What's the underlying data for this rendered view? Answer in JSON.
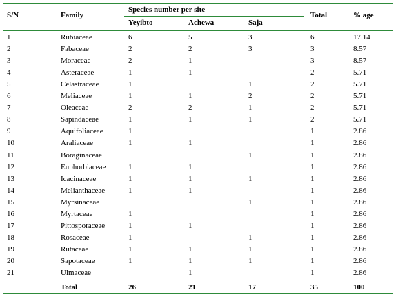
{
  "table": {
    "columns": [
      "S/N",
      "Family",
      "Species number per site",
      "Total",
      "% age"
    ],
    "site_columns": [
      "Yeyibto",
      "Achewa",
      "Saja"
    ],
    "rows": [
      [
        "1",
        "Rubiaceae",
        "6",
        "5",
        "3",
        "6",
        "17.14"
      ],
      [
        "2",
        "Fabaceae",
        "2",
        "2",
        "3",
        "3",
        "8.57"
      ],
      [
        "3",
        "Moraceae",
        "2",
        "1",
        null,
        "3",
        "8.57"
      ],
      [
        "4",
        "Asteraceae",
        "1",
        "1",
        null,
        "2",
        "5.71"
      ],
      [
        "5",
        "Celastraceae",
        "1",
        null,
        "1",
        "2",
        "5.71"
      ],
      [
        "6",
        "Meliaceae",
        "1",
        "1",
        "2",
        "2",
        "5.71"
      ],
      [
        "7",
        "Oleaceae",
        "2",
        "2",
        "1",
        "2",
        "5.71"
      ],
      [
        "8",
        "Sapindaceae",
        "1",
        "1",
        "1",
        "2",
        "5.71"
      ],
      [
        "9",
        "Aquifoliaceae",
        "1",
        null,
        null,
        "1",
        "2.86"
      ],
      [
        "10",
        "Araliaceae",
        "1",
        "1",
        null,
        "1",
        "2.86"
      ],
      [
        "11",
        "Boraginaceae",
        null,
        null,
        "1",
        "1",
        "2.86"
      ],
      [
        "12",
        "Euphorbiaceae",
        "1",
        "1",
        null,
        "1",
        "2.86"
      ],
      [
        "13",
        "Icacinaceae",
        "1",
        "1",
        "1",
        "1",
        "2.86"
      ],
      [
        "14",
        "Melianthaceae",
        "1",
        "1",
        null,
        "1",
        "2.86"
      ],
      [
        "15",
        "Myrsinaceae",
        null,
        null,
        "1",
        "1",
        "2.86"
      ],
      [
        "16",
        "Myrtaceae",
        "1",
        null,
        null,
        "1",
        "2.86"
      ],
      [
        "17",
        "Pittosporaceae",
        "1",
        "1",
        null,
        "1",
        "2.86"
      ],
      [
        "18",
        "Rosaceae",
        "1",
        null,
        "1",
        "1",
        "2.86"
      ],
      [
        "19",
        "Rutaceae",
        "1",
        "1",
        "1",
        "1",
        "2.86"
      ],
      [
        "20",
        "Sapotaceae",
        "1",
        "1",
        "1",
        "1",
        "2.86"
      ],
      [
        "21",
        "Ulmaceae",
        null,
        "1",
        null,
        "1",
        "2.86"
      ]
    ],
    "total_row": [
      "Total",
      "26",
      "21",
      "17",
      "35",
      "100"
    ]
  }
}
